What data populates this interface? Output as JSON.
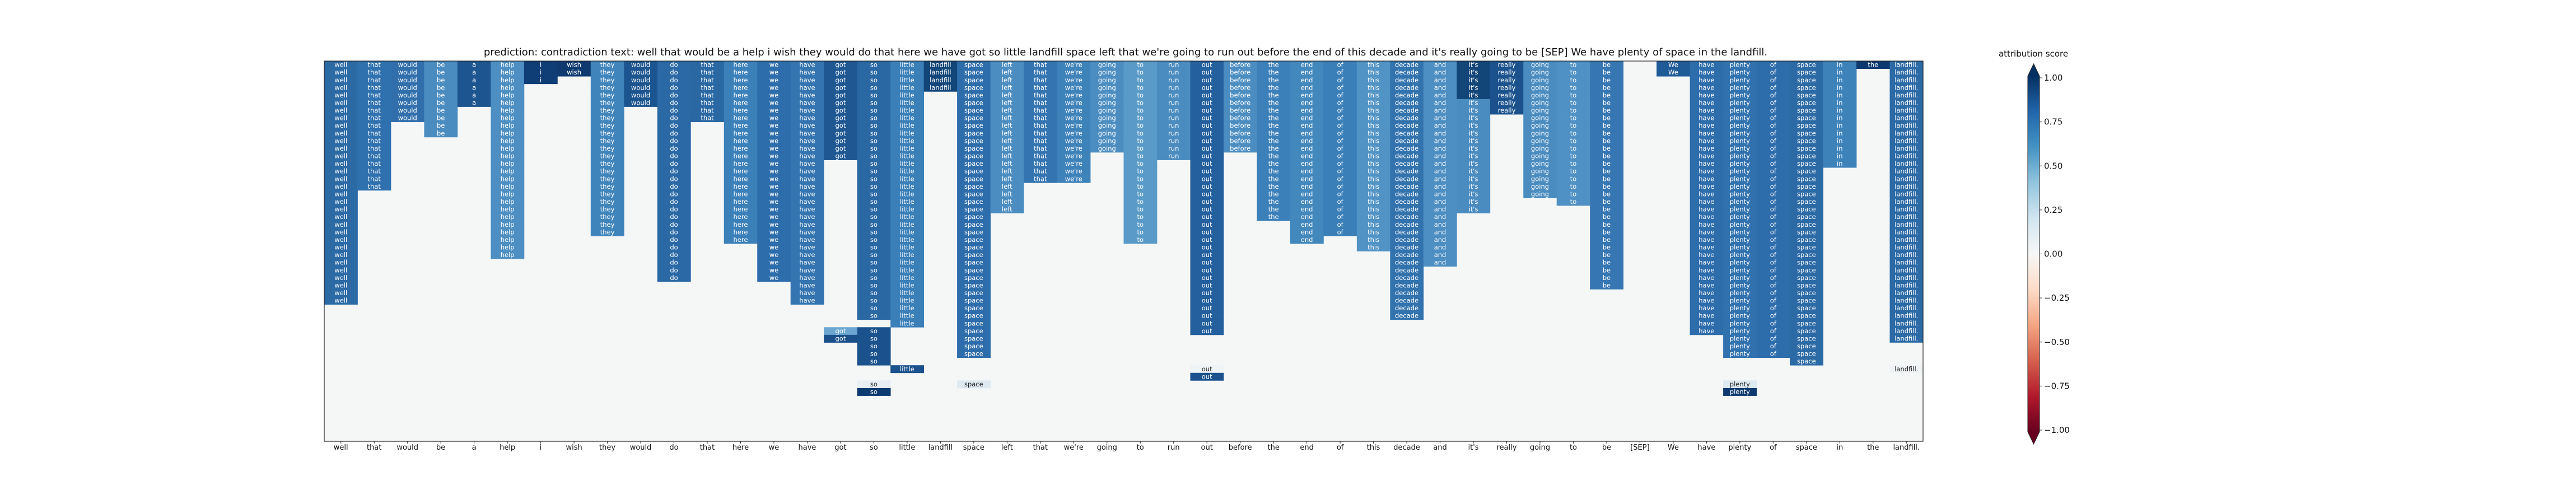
{
  "chart_data": {
    "type": "heatmap",
    "title": "prediction:  contradiction     text:  well that would be a help i wish they would do that here we have got so little landfill space left that we're going to run out before the end of this decade and it's really going to be [SEP] We have plenty of space in the landfill.",
    "xlabel": "",
    "ylabel": "",
    "tokens": [
      "well",
      "that",
      "would",
      "be",
      "a",
      "help",
      "i",
      "wish",
      "they",
      "would",
      "do",
      "that",
      "here",
      "we",
      "have",
      "got",
      "so",
      "little",
      "landfill",
      "space",
      "left",
      "that",
      "we're",
      "going",
      "to",
      "run",
      "out",
      "before",
      "the",
      "end",
      "of",
      "this",
      "decade",
      "and",
      "it's",
      "really",
      "going",
      "to",
      "be",
      "[SEP]",
      "We",
      "have",
      "plenty",
      "of",
      "space",
      "in",
      "the",
      "landfill."
    ],
    "rows_total": 50,
    "column_runs": [
      [
        [
          0,
          32,
          "#2c6aa6"
        ]
      ],
      [
        [
          0,
          17,
          "#2f71ae"
        ]
      ],
      [
        [
          0,
          8,
          "#316fac"
        ]
      ],
      [
        [
          0,
          10,
          "#4a8cc0"
        ]
      ],
      [
        [
          0,
          6,
          "#1d5590"
        ]
      ],
      [
        [
          0,
          26,
          "#4d8fc3"
        ]
      ],
      [
        [
          0,
          3,
          "#0f3d75"
        ]
      ],
      [
        [
          0,
          2,
          "#0e3a70"
        ]
      ],
      [
        [
          0,
          23,
          "#3f84bb"
        ]
      ],
      [
        [
          0,
          6,
          "#1c548f"
        ]
      ],
      [
        [
          0,
          29,
          "#2b69a6"
        ]
      ],
      [
        [
          0,
          8,
          "#2a68a4"
        ]
      ],
      [
        [
          0,
          24,
          "#3b80b9"
        ]
      ],
      [
        [
          0,
          29,
          "#2e6dab"
        ]
      ],
      [
        [
          0,
          32,
          "#3474b0"
        ]
      ],
      [
        [
          0,
          13,
          "#1e5792"
        ],
        [
          35,
          2,
          "#6aa6d1"
        ],
        [
          36,
          1,
          "#1a4f8a"
        ]
      ],
      [
        [
          0,
          34,
          "#2a68a4"
        ],
        [
          35,
          5,
          "#1b528d"
        ],
        [
          42,
          1,
          "#e8eef3"
        ],
        [
          43,
          1,
          "#0d3a70"
        ]
      ],
      [
        [
          0,
          35,
          "#3a7fb8"
        ],
        [
          40,
          1,
          "#1b528d"
        ]
      ],
      [
        [
          0,
          4,
          "#124578"
        ]
      ],
      [
        [
          0,
          39,
          "#2e6dab"
        ],
        [
          42,
          1,
          "#dfe9f2"
        ]
      ],
      [
        [
          0,
          20,
          "#4b8dc1"
        ]
      ],
      [
        [
          0,
          16,
          "#3474b0"
        ]
      ],
      [
        [
          0,
          16,
          "#3e82ba"
        ]
      ],
      [
        [
          0,
          12,
          "#4b8dc1"
        ]
      ],
      [
        [
          0,
          24,
          "#5a9ac9"
        ]
      ],
      [
        [
          0,
          13,
          "#4a8cc0"
        ]
      ],
      [
        [
          0,
          36,
          "#245f9e"
        ],
        [
          40,
          1,
          "#eef3f5"
        ],
        [
          41,
          1,
          "#1b528d"
        ]
      ],
      [
        [
          0,
          12,
          "#4b8dc1"
        ]
      ],
      [
        [
          0,
          21,
          "#3c80b9"
        ]
      ],
      [
        [
          0,
          24,
          "#4288bd"
        ]
      ],
      [
        [
          0,
          23,
          "#3a7fb8"
        ]
      ],
      [
        [
          0,
          25,
          "#5193c5"
        ]
      ],
      [
        [
          0,
          34,
          "#3273ae"
        ]
      ],
      [
        [
          0,
          27,
          "#4d8fc3"
        ]
      ],
      [
        [
          0,
          5,
          "#124578"
        ],
        [
          5,
          15,
          "#4a8cc0"
        ]
      ],
      [
        [
          0,
          7,
          "#1b528d"
        ]
      ],
      [
        [
          0,
          18,
          "#4a8cc0"
        ]
      ],
      [
        [
          0,
          19,
          "#4f91c4"
        ]
      ],
      [
        [
          0,
          30,
          "#3676b2"
        ]
      ],
      [],
      [
        [
          0,
          2,
          "#1f5b97"
        ]
      ],
      [
        [
          0,
          36,
          "#2e6dab"
        ]
      ],
      [
        [
          0,
          39,
          "#3172ae"
        ],
        [
          42,
          1,
          "#deeaf1"
        ],
        [
          43,
          1,
          "#0e3a70"
        ]
      ],
      [
        [
          0,
          39,
          "#2e6dab"
        ]
      ],
      [
        [
          0,
          40,
          "#2c6aa6"
        ]
      ],
      [
        [
          0,
          14,
          "#3e82ba"
        ]
      ],
      [
        [
          0,
          1,
          "#0d3970"
        ]
      ],
      [
        [
          0,
          37,
          "#2c6aa6"
        ],
        [
          40,
          1,
          "#f0f3f5"
        ]
      ]
    ],
    "colorbar": {
      "label": "attribution score",
      "ticks": [
        "1.00",
        "0.75",
        "0.50",
        "0.25",
        "0.00",
        "−0.25",
        "−0.50",
        "−0.75",
        "−1.00"
      ],
      "vmin": -1.0,
      "vmax": 1.0,
      "colors": [
        "#67001f",
        "#b2182b",
        "#d6604d",
        "#f4a582",
        "#fddbc7",
        "#f7f7f7",
        "#d1e5f0",
        "#92c5de",
        "#4393c3",
        "#2166ac",
        "#053061"
      ]
    },
    "background_color": "#f5f7f7"
  }
}
